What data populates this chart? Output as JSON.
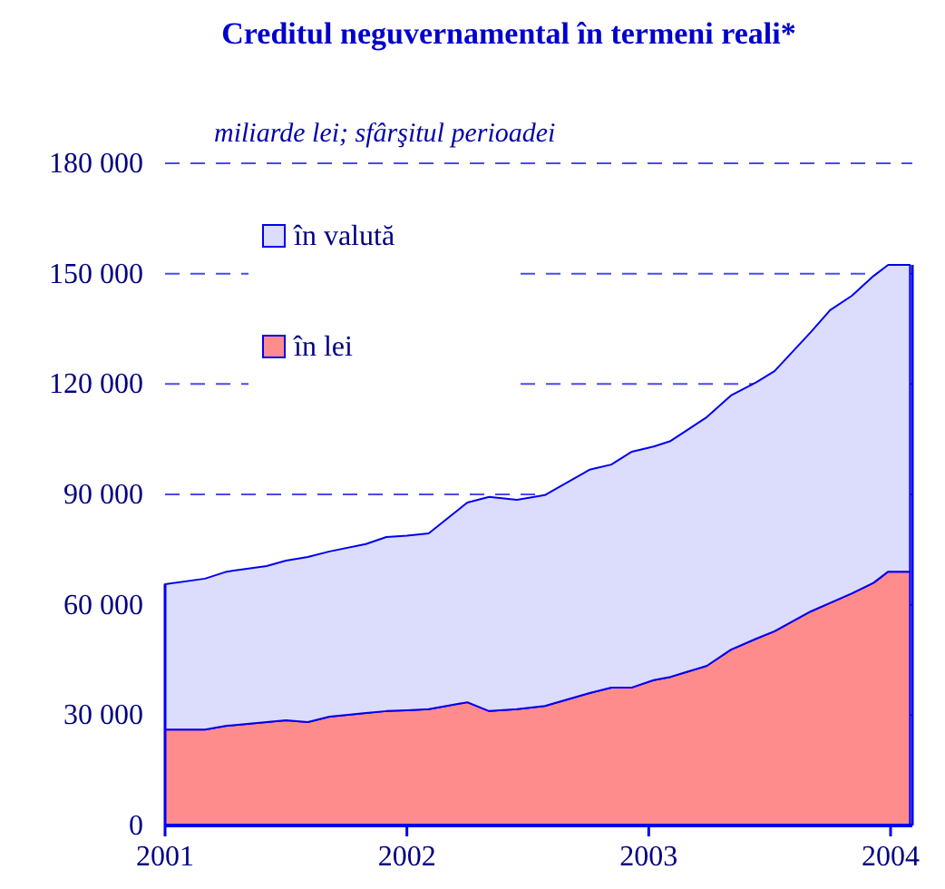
{
  "chart_data": {
    "type": "area",
    "stacked": true,
    "title": "Creditul neguvernamental în termeni reali*",
    "ylabel": "miliarde lei; sfârşitul perioadei",
    "x": [
      2001,
      2001.165,
      2001.255,
      2001.42,
      2001.5,
      2001.59,
      2001.68,
      2001.83,
      2001.915,
      2002,
      2002.09,
      2002.25,
      2002.34,
      2002.455,
      2002.57,
      2002.755,
      2002.845,
      2002.93,
      2003.02,
      2003.09,
      2003.24,
      2003.34,
      2003.445,
      2003.52,
      2003.67,
      2003.75,
      2003.84,
      2003.93,
      2003.99,
      2004.08
    ],
    "series": [
      {
        "name": "în lei",
        "color": "#ff8c8c",
        "values": [
          26100,
          26100,
          27100,
          28100,
          28600,
          28100,
          29600,
          30600,
          31100,
          31300,
          31600,
          33500,
          31100,
          31600,
          32500,
          36000,
          37500,
          37500,
          39500,
          40400,
          43400,
          47800,
          50800,
          52800,
          58200,
          60500,
          63100,
          66000,
          69000,
          69000
        ]
      },
      {
        "name": "în valută",
        "color": "#dcdcfc",
        "values": [
          39500,
          41000,
          41900,
          42400,
          43400,
          44900,
          44900,
          45900,
          47300,
          47500,
          47800,
          54300,
          58200,
          56900,
          57300,
          60700,
          60600,
          64100,
          63500,
          64100,
          67600,
          69100,
          69700,
          70700,
          75900,
          79600,
          80900,
          83400,
          83400,
          83400
        ]
      }
    ],
    "xlim": [
      2001,
      2004.09
    ],
    "xticks": [
      2001,
      2002,
      2003,
      2004
    ],
    "ylim": [
      0,
      180000
    ],
    "yticks": [
      {
        "value": 0,
        "label": "0"
      },
      {
        "value": 30000,
        "label": "30 000"
      },
      {
        "value": 60000,
        "label": "60 000"
      },
      {
        "value": 90000,
        "label": "90 000"
      },
      {
        "value": 120000,
        "label": "120 000"
      },
      {
        "value": 150000,
        "label": "150 000"
      },
      {
        "value": 180000,
        "label": "180 000"
      }
    ],
    "grid": "y",
    "legend": "top left"
  }
}
